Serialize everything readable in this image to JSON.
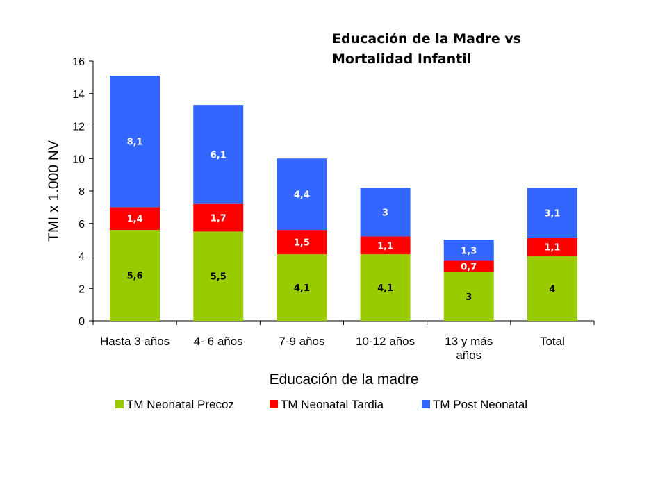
{
  "chart_data": {
    "type": "bar",
    "stacked": true,
    "title_lines": [
      "Educación de la Madre vs",
      "Mortalidad Infantil"
    ],
    "xlabel": "Educación de la madre",
    "ylabel": "TMI x 1.000 NV",
    "ylim": [
      0,
      16
    ],
    "yticks": [
      "0",
      "2",
      "4",
      "6",
      "8",
      "10",
      "12",
      "14",
      "16"
    ],
    "categories": [
      [
        "Hasta 3 años"
      ],
      [
        "4- 6 años"
      ],
      [
        "7-9 años"
      ],
      [
        "10-12 años"
      ],
      [
        "13 y más",
        "años"
      ],
      [
        "Total"
      ]
    ],
    "grid": false,
    "legend_position": "bottom",
    "series": [
      {
        "name": "TM Neonatal Precoz",
        "color": "#99cc00",
        "label_color": "#000000",
        "values": [
          5.6,
          5.5,
          4.1,
          4.1,
          3,
          4
        ],
        "labels": [
          "5,6",
          "5,5",
          "4,1",
          "4,1",
          "3",
          "4"
        ]
      },
      {
        "name": "TM Neonatal Tardia",
        "color": "#ff0000",
        "label_color": "#ffffff",
        "values": [
          1.4,
          1.7,
          1.5,
          1.1,
          0.7,
          1.1
        ],
        "labels": [
          "1,4",
          "1,7",
          "1,5",
          "1,1",
          "0,7",
          "1,1"
        ]
      },
      {
        "name": "TM Post Neonatal",
        "color": "#3366ff",
        "label_color": "#ffffff",
        "values": [
          8.1,
          6.1,
          4.4,
          3,
          1.3,
          3.1
        ],
        "labels": [
          "8,1",
          "6,1",
          "4,4",
          "3",
          "1,3",
          "3,1"
        ]
      }
    ]
  }
}
